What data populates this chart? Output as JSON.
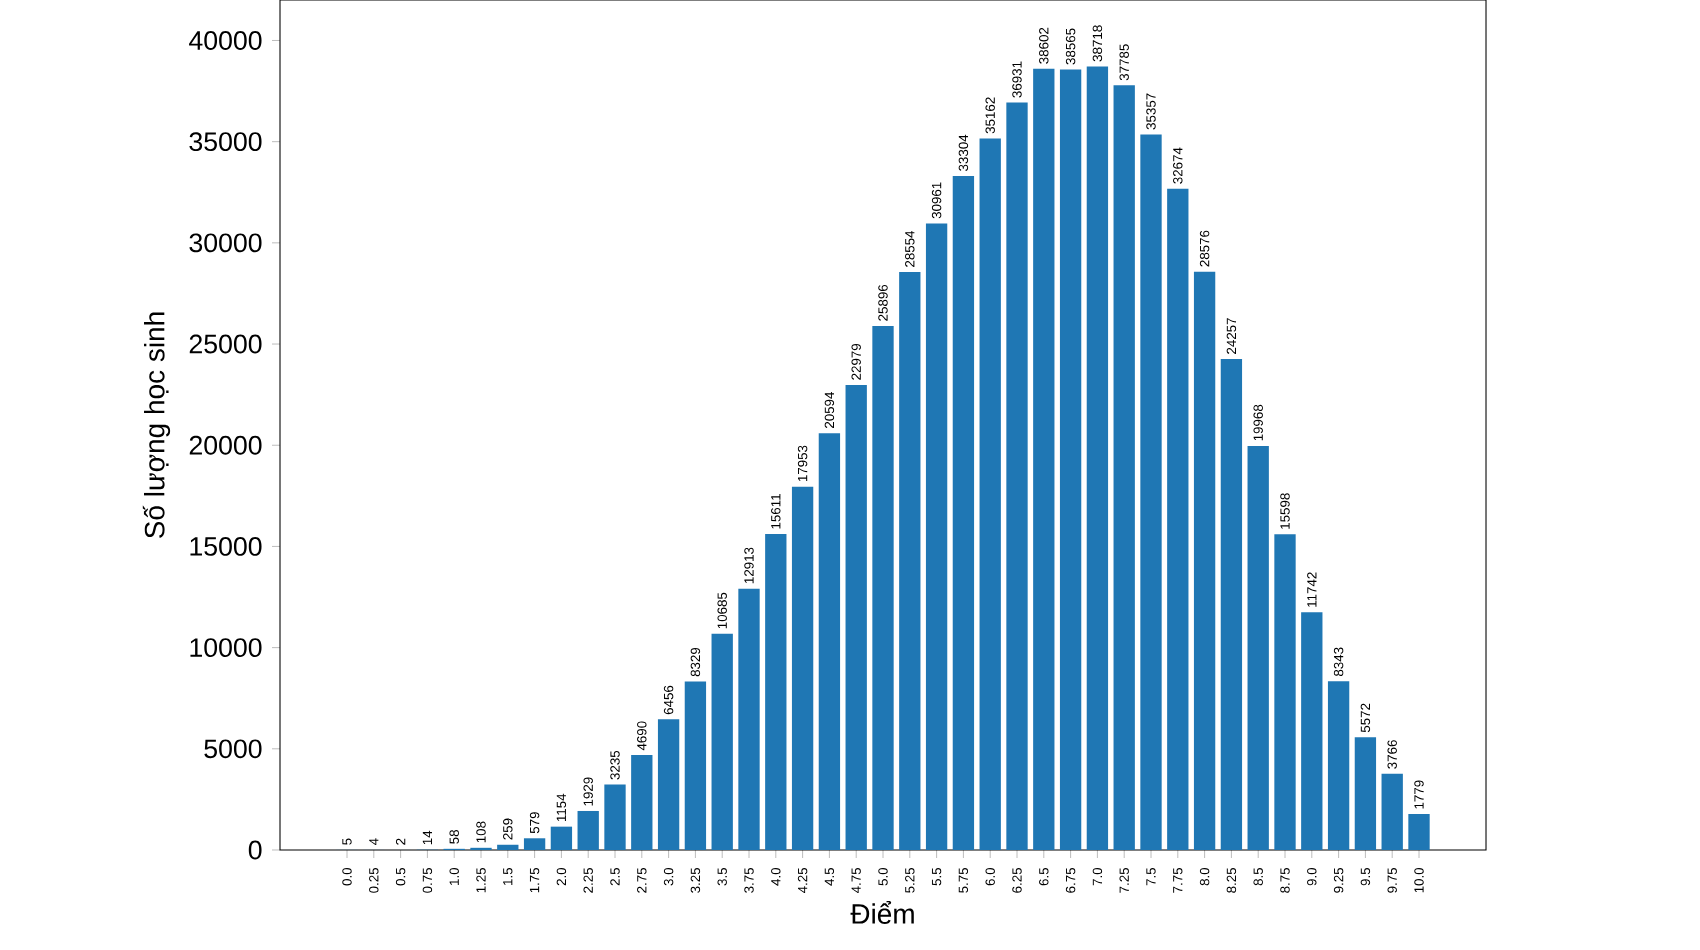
{
  "chart_data": {
    "type": "bar",
    "xlabel": "Điểm",
    "ylabel": "Số lượng học sinh",
    "categories": [
      "0.0",
      "0.25",
      "0.5",
      "0.75",
      "1.0",
      "1.25",
      "1.5",
      "1.75",
      "2.0",
      "2.25",
      "2.5",
      "2.75",
      "3.0",
      "3.25",
      "3.5",
      "3.75",
      "4.0",
      "4.25",
      "4.5",
      "4.75",
      "5.0",
      "5.25",
      "5.5",
      "5.75",
      "6.0",
      "6.25",
      "6.5",
      "6.75",
      "7.0",
      "7.25",
      "7.5",
      "7.75",
      "8.0",
      "8.25",
      "8.5",
      "8.75",
      "9.0",
      "9.25",
      "9.5",
      "9.75",
      "10.0"
    ],
    "values": [
      5,
      4,
      2,
      14,
      58,
      108,
      259,
      579,
      1154,
      1929,
      3235,
      4690,
      6456,
      8329,
      10685,
      12913,
      15611,
      17953,
      20594,
      22979,
      25896,
      28554,
      30961,
      33304,
      35162,
      36931,
      38602,
      38565,
      38718,
      37785,
      35357,
      32674,
      28576,
      24257,
      19968,
      15598,
      11742,
      8343,
      5572,
      3766,
      1779
    ],
    "color": "#1f77b4",
    "data_labels": true,
    "grid": false,
    "ylim": [
      0,
      42000
    ],
    "yticks": [
      0,
      5000,
      10000,
      15000,
      20000,
      25000,
      30000,
      35000,
      40000
    ]
  }
}
